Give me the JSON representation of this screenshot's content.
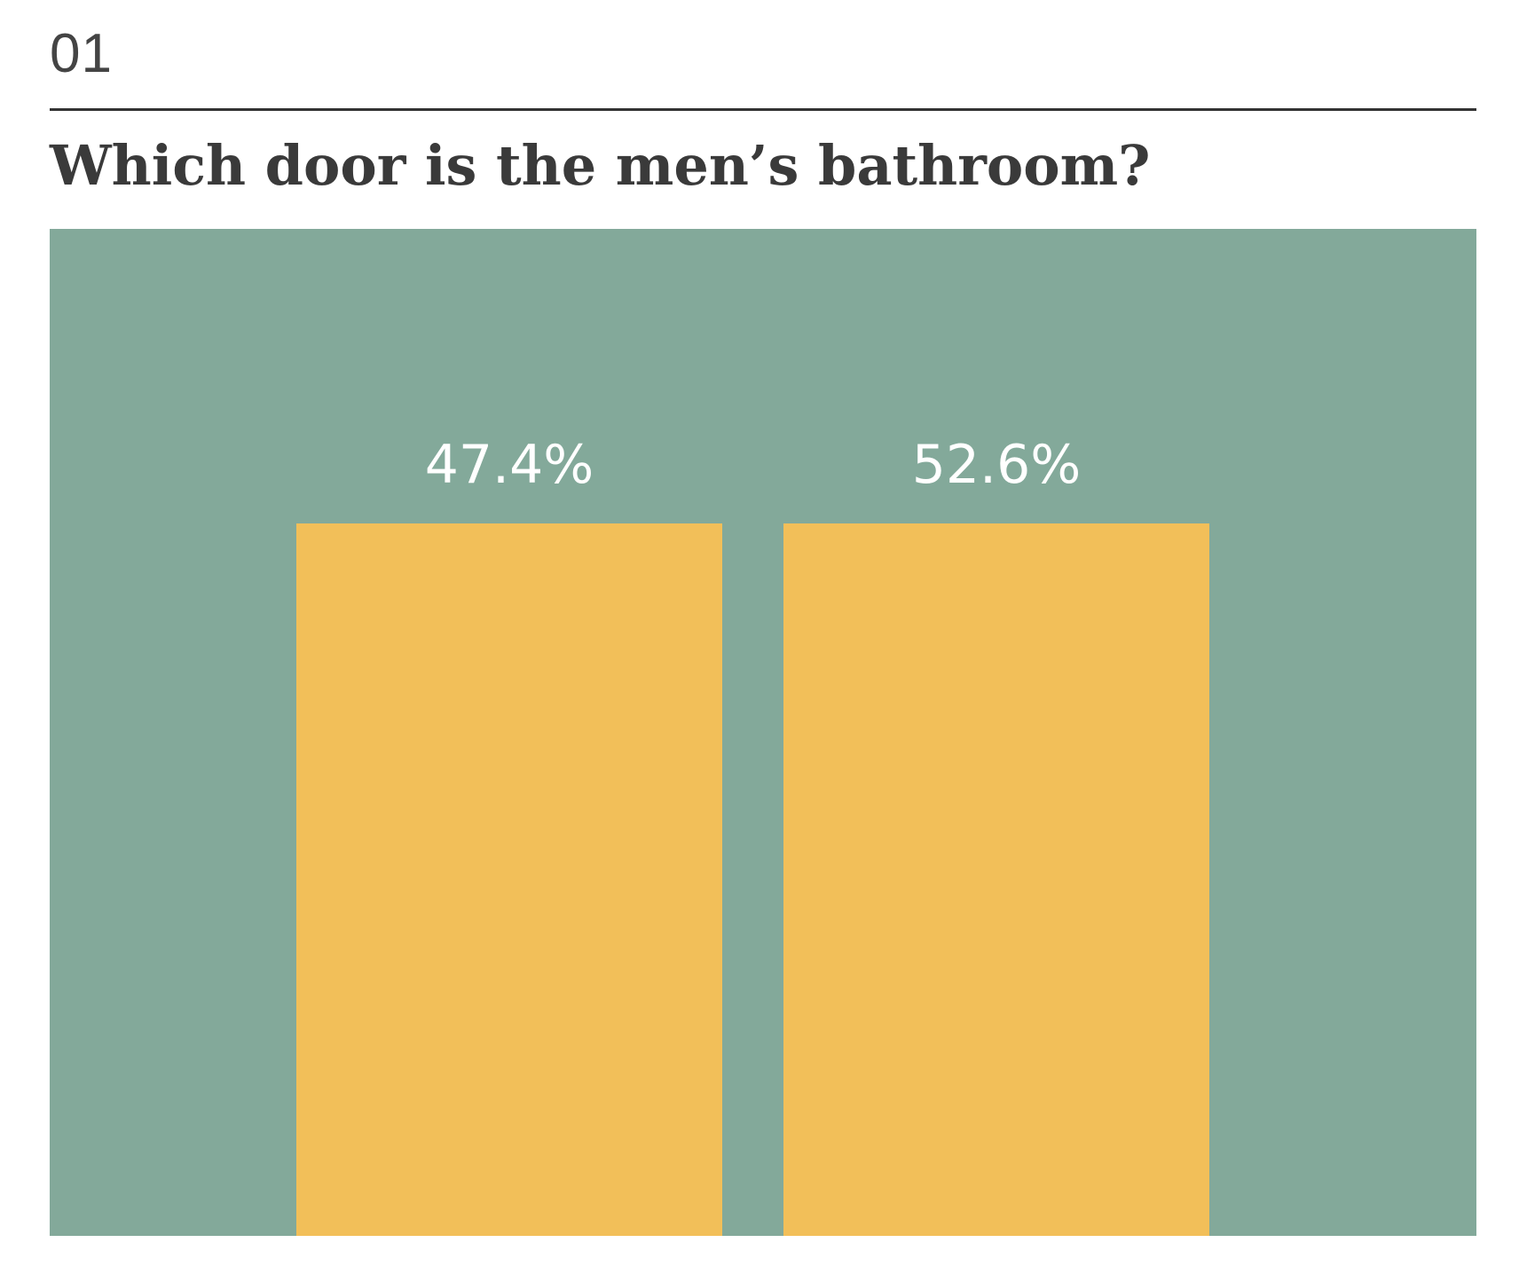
{
  "number": "01",
  "title": "Which door is the men’s bathroom?",
  "colors": {
    "panel": "#83a99a",
    "door": "#f2bf59",
    "text": "#3a3a3a"
  },
  "doors": [
    {
      "percent_label": "47.4%"
    },
    {
      "percent_label": "52.6%"
    }
  ]
}
